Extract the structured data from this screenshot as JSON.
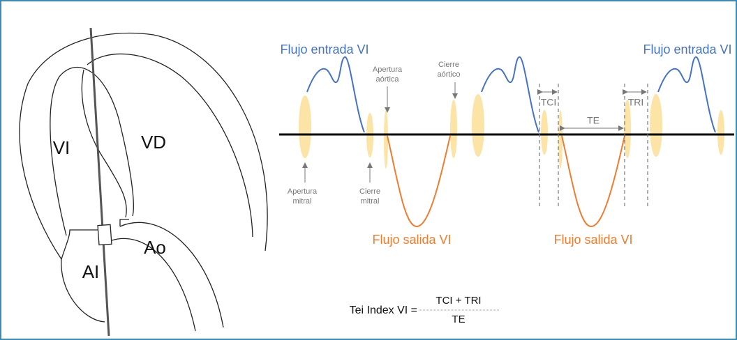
{
  "heart": {
    "vi": "VI",
    "vd": "VD",
    "ai": "AI",
    "ao": "Ao"
  },
  "waveform": {
    "inflow_left": "Flujo entrada VI",
    "inflow_right": "Flujo entrada VI",
    "aortic_opening": [
      "Apertura",
      "aórtica"
    ],
    "aortic_closing": [
      "Cierre",
      "aórtico"
    ],
    "mitral_opening": [
      "Apertura",
      "mitral"
    ],
    "mitral_closing": [
      "Cierre",
      "mitral"
    ],
    "tci": "TCI",
    "tri": "TRI",
    "te": "TE",
    "outflow_left": "Flujo salida VI",
    "outflow_right": "Flujo salida VI"
  },
  "formula": {
    "lhs": "Tei Index VI =",
    "numerator": "TCI + TRI",
    "denominator": "TE"
  }
}
